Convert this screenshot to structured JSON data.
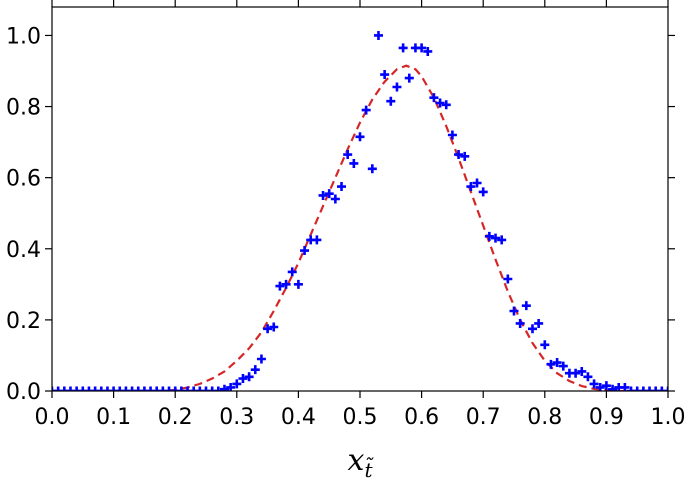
{
  "chart_data": {
    "type": "scatter",
    "title": "",
    "xlabel": "x",
    "xlabel_subscript": "t̃",
    "ylabel": "",
    "xlim": [
      0.0,
      1.0
    ],
    "ylim": [
      0.0,
      1.08
    ],
    "x_ticks": [
      0.0,
      0.1,
      0.2,
      0.3,
      0.4,
      0.5,
      0.6,
      0.7,
      0.8,
      0.9,
      1.0
    ],
    "x_tick_labels": [
      "0.0",
      "0.1",
      "0.2",
      "0.3",
      "0.4",
      "0.5",
      "0.6",
      "0.7",
      "0.8",
      "0.9",
      "1.0"
    ],
    "y_ticks": [
      0.0,
      0.2,
      0.4,
      0.6,
      0.8,
      1.0
    ],
    "y_tick_labels": [
      "0.0",
      "0.2",
      "0.4",
      "0.6",
      "0.8",
      "1.0"
    ],
    "grid": false,
    "legend": "none",
    "colors": {
      "points": "#0000ff",
      "fit": "#d62728"
    },
    "fit_curve": {
      "style": "dashed",
      "x": [
        0.0,
        0.02,
        0.04,
        0.06,
        0.08,
        0.1,
        0.12,
        0.14,
        0.16,
        0.18,
        0.2,
        0.22,
        0.24,
        0.26,
        0.28,
        0.3,
        0.32,
        0.34,
        0.36,
        0.38,
        0.4,
        0.42,
        0.44,
        0.46,
        0.48,
        0.5,
        0.52,
        0.54,
        0.56,
        0.575,
        0.59,
        0.6,
        0.62,
        0.64,
        0.66,
        0.68,
        0.7,
        0.72,
        0.74,
        0.76,
        0.78,
        0.8,
        0.82,
        0.84,
        0.86,
        0.88,
        0.9,
        0.92,
        0.94,
        0.96,
        0.98,
        1.0
      ],
      "y": [
        0.0,
        0.0,
        0.0,
        0.0,
        0.0,
        0.0,
        0.0,
        0.0,
        0.0,
        0.0005,
        0.003,
        0.01,
        0.02,
        0.035,
        0.055,
        0.085,
        0.12,
        0.165,
        0.225,
        0.29,
        0.36,
        0.44,
        0.52,
        0.6,
        0.68,
        0.755,
        0.82,
        0.87,
        0.905,
        0.915,
        0.905,
        0.885,
        0.825,
        0.745,
        0.655,
        0.56,
        0.465,
        0.37,
        0.28,
        0.2,
        0.135,
        0.085,
        0.05,
        0.028,
        0.014,
        0.006,
        0.002,
        0.0005,
        0.0,
        0.0,
        0.0,
        0.0
      ]
    },
    "points": {
      "x": [
        0.0,
        0.01,
        0.02,
        0.03,
        0.04,
        0.05,
        0.06,
        0.07,
        0.08,
        0.09,
        0.1,
        0.11,
        0.12,
        0.13,
        0.14,
        0.15,
        0.16,
        0.17,
        0.18,
        0.19,
        0.2,
        0.21,
        0.22,
        0.23,
        0.24,
        0.25,
        0.26,
        0.27,
        0.28,
        0.29,
        0.3,
        0.31,
        0.32,
        0.33,
        0.34,
        0.35,
        0.36,
        0.37,
        0.38,
        0.39,
        0.4,
        0.41,
        0.42,
        0.43,
        0.44,
        0.45,
        0.46,
        0.47,
        0.48,
        0.49,
        0.5,
        0.51,
        0.52,
        0.53,
        0.54,
        0.55,
        0.56,
        0.57,
        0.58,
        0.59,
        0.6,
        0.61,
        0.62,
        0.63,
        0.64,
        0.65,
        0.66,
        0.67,
        0.68,
        0.69,
        0.7,
        0.71,
        0.72,
        0.73,
        0.74,
        0.75,
        0.76,
        0.77,
        0.78,
        0.79,
        0.8,
        0.81,
        0.82,
        0.83,
        0.84,
        0.85,
        0.86,
        0.87,
        0.88,
        0.89,
        0.9,
        0.91,
        0.92,
        0.93,
        0.94,
        0.95,
        0.96,
        0.97,
        0.98,
        0.99,
        1.0
      ],
      "y": [
        0.0,
        0.0,
        0.0,
        0.0,
        0.0,
        0.0,
        0.0,
        0.0,
        0.0,
        0.0,
        0.0,
        0.0,
        0.0,
        0.0,
        0.0,
        0.0,
        0.0,
        0.0,
        0.0,
        0.0,
        0.0,
        0.0,
        0.0,
        0.0,
        0.0,
        0.0,
        0.0,
        0.0,
        0.005,
        0.01,
        0.02,
        0.035,
        0.04,
        0.06,
        0.09,
        0.175,
        0.18,
        0.295,
        0.3,
        0.335,
        0.3,
        0.395,
        0.425,
        0.425,
        0.55,
        0.555,
        0.54,
        0.575,
        0.665,
        0.64,
        0.715,
        0.79,
        0.625,
        1.0,
        0.89,
        0.815,
        0.855,
        0.965,
        0.88,
        0.965,
        0.965,
        0.955,
        0.825,
        0.81,
        0.805,
        0.72,
        0.665,
        0.66,
        0.575,
        0.585,
        0.56,
        0.435,
        0.43,
        0.425,
        0.315,
        0.225,
        0.19,
        0.24,
        0.175,
        0.19,
        0.13,
        0.075,
        0.08,
        0.07,
        0.05,
        0.05,
        0.055,
        0.04,
        0.02,
        0.01,
        0.015,
        0.005,
        0.01,
        0.01,
        0.0,
        0.0,
        0.0,
        0.0,
        0.0,
        0.0,
        0.0
      ]
    }
  }
}
